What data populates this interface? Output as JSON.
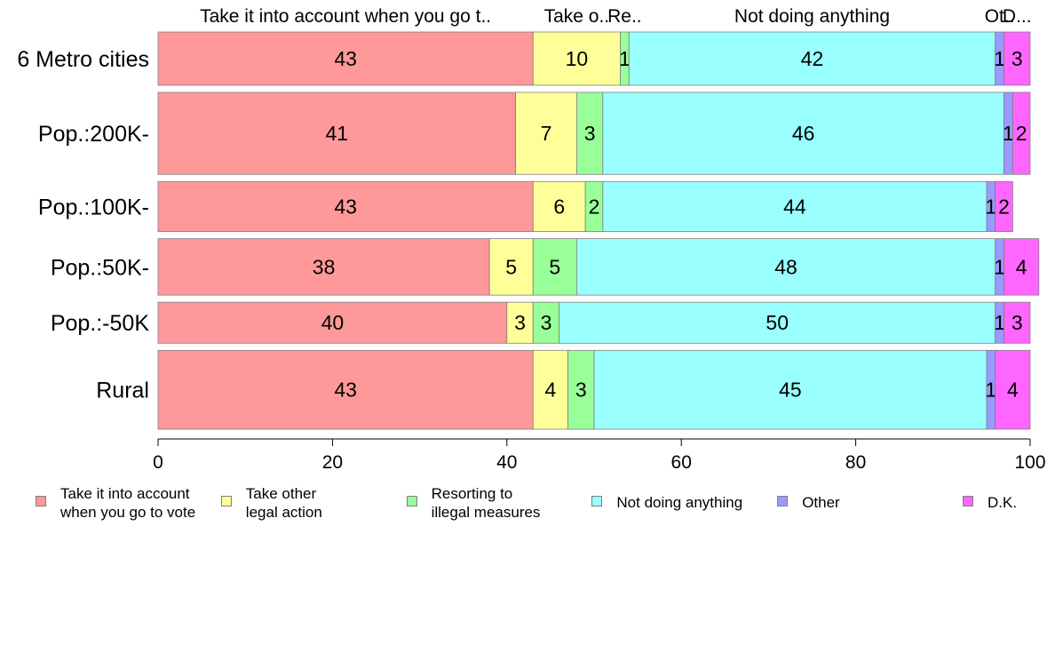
{
  "chart_data": {
    "type": "bar",
    "orientation": "horizontal",
    "stacked": true,
    "categories": [
      "6 Metro cities",
      "Pop.:200K-",
      "Pop.:100K-",
      "Pop.:50K-",
      "Pop.:-50K",
      "Rural"
    ],
    "series": [
      {
        "name": "Take it into account when you go to vote",
        "legend_label": "Take it into account\nwhen you go to vote",
        "top_label": "Take it into account when you go t..",
        "color": "#ff9999",
        "values": [
          43,
          41,
          43,
          38,
          40,
          43
        ]
      },
      {
        "name": "Take other legal action",
        "legend_label": "Take other\nlegal action",
        "top_label": "Take o..",
        "color": "#ffff99",
        "values": [
          10,
          7,
          6,
          5,
          3,
          4
        ]
      },
      {
        "name": "Resorting to illegal measures",
        "legend_label": "Resorting to\nillegal measures",
        "top_label": "Re..",
        "color": "#99ff99",
        "values": [
          1,
          3,
          2,
          5,
          3,
          3
        ]
      },
      {
        "name": "Not doing anything",
        "legend_label": "Not doing anything",
        "top_label": "Not doing anything",
        "color": "#99ffff",
        "values": [
          42,
          46,
          44,
          48,
          50,
          45
        ]
      },
      {
        "name": "Other",
        "legend_label": "Other",
        "top_label": "Ot..",
        "color": "#9999ff",
        "values": [
          1,
          1,
          1,
          1,
          1,
          1
        ]
      },
      {
        "name": "D.K.",
        "legend_label": "D.K.",
        "top_label": "D...",
        "color": "#ff66ff",
        "values": [
          3,
          2,
          2,
          4,
          3,
          4
        ]
      }
    ],
    "bar_weights": [
      1.0,
      1.54,
      0.94,
      1.06,
      0.77,
      1.48
    ],
    "xlim": [
      0,
      100
    ],
    "xticks": [
      0,
      20,
      40,
      60,
      80,
      100
    ],
    "xlabel": "",
    "ylabel": "",
    "title": "",
    "grid": false,
    "legend_position": "bottom"
  }
}
